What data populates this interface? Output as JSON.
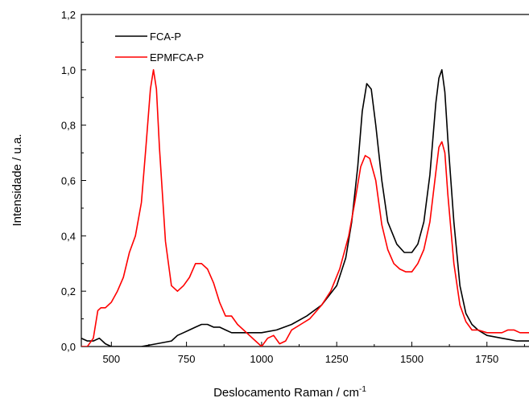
{
  "chart_data": {
    "type": "line",
    "xlabel": "Deslocamento Raman / cm",
    "xlabel_sup": "-1",
    "ylabel": "Intensidade / u.a.",
    "xlim": [
      400,
      1890
    ],
    "ylim": [
      0.0,
      1.2
    ],
    "xticks": [
      500,
      750,
      1000,
      1250,
      1500,
      1750
    ],
    "xtick_labels": [
      "500",
      "750",
      "1000",
      "1250",
      "1500",
      "1750"
    ],
    "yticks": [
      0.0,
      0.2,
      0.4,
      0.6,
      0.8,
      1.0,
      1.2
    ],
    "ytick_labels": [
      "0,0",
      "0,2",
      "0,4",
      "0,6",
      "0,8",
      "1,0",
      "1,2"
    ],
    "grid": false,
    "legend_position": "top-left",
    "series": [
      {
        "name": "FCA-P",
        "color": "#000000",
        "x": [
          400,
          420,
          440,
          460,
          480,
          500,
          520,
          550,
          600,
          650,
          700,
          720,
          740,
          760,
          780,
          800,
          820,
          840,
          860,
          880,
          900,
          950,
          1000,
          1050,
          1100,
          1150,
          1200,
          1250,
          1280,
          1300,
          1320,
          1335,
          1350,
          1365,
          1380,
          1400,
          1420,
          1450,
          1475,
          1500,
          1520,
          1540,
          1560,
          1580,
          1590,
          1600,
          1610,
          1620,
          1640,
          1660,
          1680,
          1700,
          1720,
          1750,
          1800,
          1850,
          1890
        ],
        "y": [
          0.03,
          0.02,
          0.02,
          0.03,
          0.01,
          0.0,
          0.0,
          0.0,
          0.0,
          0.01,
          0.02,
          0.04,
          0.05,
          0.06,
          0.07,
          0.08,
          0.08,
          0.07,
          0.07,
          0.06,
          0.05,
          0.05,
          0.05,
          0.06,
          0.08,
          0.11,
          0.15,
          0.22,
          0.32,
          0.45,
          0.65,
          0.85,
          0.95,
          0.93,
          0.8,
          0.6,
          0.45,
          0.37,
          0.34,
          0.34,
          0.37,
          0.45,
          0.62,
          0.88,
          0.97,
          1.0,
          0.92,
          0.75,
          0.45,
          0.22,
          0.12,
          0.08,
          0.06,
          0.04,
          0.03,
          0.02,
          0.02
        ]
      },
      {
        "name": "EPMFCA-P",
        "color": "#ff0000",
        "x": [
          400,
          420,
          440,
          455,
          465,
          480,
          500,
          520,
          540,
          560,
          580,
          600,
          615,
          630,
          640,
          650,
          660,
          680,
          700,
          720,
          740,
          760,
          780,
          800,
          820,
          840,
          860,
          880,
          900,
          920,
          950,
          980,
          1000,
          1020,
          1040,
          1060,
          1080,
          1100,
          1130,
          1160,
          1200,
          1230,
          1260,
          1290,
          1310,
          1330,
          1345,
          1360,
          1380,
          1400,
          1420,
          1440,
          1460,
          1480,
          1500,
          1520,
          1540,
          1560,
          1580,
          1590,
          1600,
          1610,
          1620,
          1640,
          1660,
          1680,
          1700,
          1720,
          1750,
          1780,
          1800,
          1820,
          1840,
          1860,
          1870,
          1890
        ],
        "y": [
          0.0,
          0.0,
          0.03,
          0.13,
          0.14,
          0.14,
          0.16,
          0.2,
          0.25,
          0.34,
          0.4,
          0.52,
          0.72,
          0.93,
          1.0,
          0.93,
          0.72,
          0.38,
          0.22,
          0.2,
          0.22,
          0.25,
          0.3,
          0.3,
          0.28,
          0.23,
          0.16,
          0.11,
          0.11,
          0.08,
          0.05,
          0.02,
          0.0,
          0.03,
          0.04,
          0.01,
          0.02,
          0.06,
          0.08,
          0.1,
          0.15,
          0.2,
          0.28,
          0.4,
          0.52,
          0.65,
          0.69,
          0.68,
          0.6,
          0.44,
          0.35,
          0.3,
          0.28,
          0.27,
          0.27,
          0.3,
          0.35,
          0.45,
          0.63,
          0.72,
          0.74,
          0.7,
          0.55,
          0.3,
          0.15,
          0.09,
          0.06,
          0.06,
          0.05,
          0.05,
          0.05,
          0.06,
          0.06,
          0.05,
          0.05,
          0.05
        ]
      }
    ]
  }
}
